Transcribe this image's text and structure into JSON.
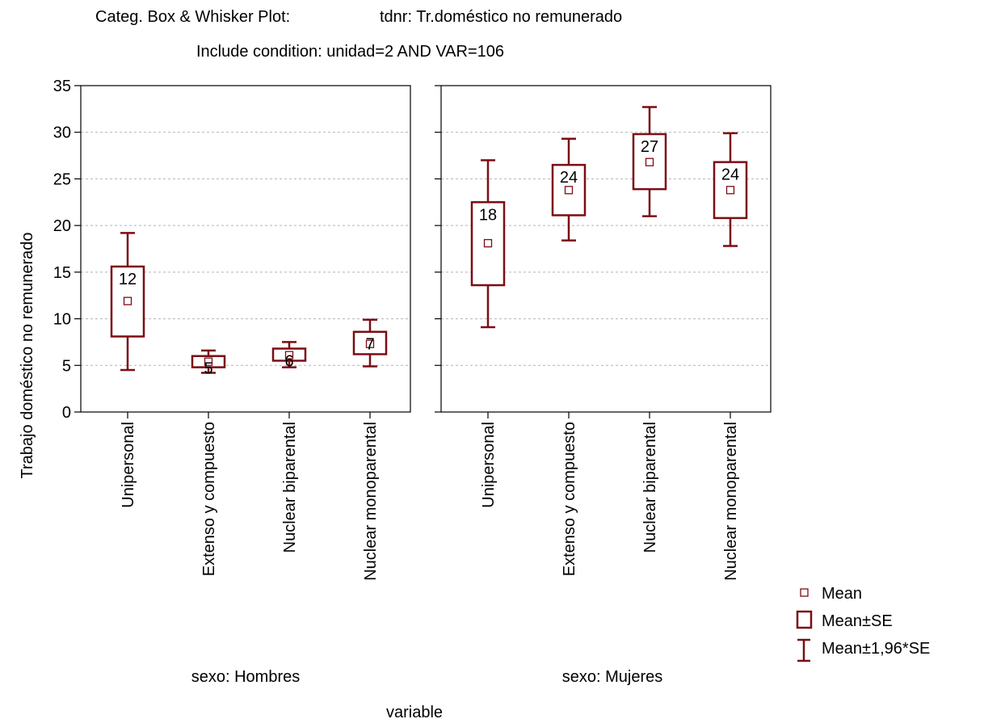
{
  "chart_data": {
    "type": "box",
    "title": "Categ. Box & Whisker Plot:",
    "title_variable": "tdnr: Tr.doméstico no remunerado",
    "subtitle": "Include condition: unidad=2 AND VAR=106",
    "ylabel": "Trabajo doméstico no remunerado",
    "xlabel": "variable",
    "ylim": [
      0,
      35
    ],
    "yticks": [
      0,
      5,
      10,
      15,
      20,
      25,
      30,
      35
    ],
    "grid": true,
    "legend_position": "bottom-right",
    "legend": [
      "Mean",
      "Mean±SE",
      "Mean±1,96*SE"
    ],
    "colors": {
      "box": "#7b0d14",
      "grid": "#b4b4b4",
      "frame": "#000000"
    },
    "panels": [
      {
        "label": "sexo: Hombres",
        "categories": [
          "Unipersonal",
          "Extenso y compuesto",
          "Nuclear biparental",
          "Nuclear monoparental"
        ],
        "mean": [
          11.9,
          5.4,
          6.1,
          7.3
        ],
        "mean_label": [
          "12",
          "5",
          "6",
          "7"
        ],
        "se_low": [
          8.1,
          4.8,
          5.5,
          6.2
        ],
        "se_high": [
          15.6,
          6.0,
          6.8,
          8.6
        ],
        "ci_low": [
          4.5,
          4.2,
          4.8,
          4.9
        ],
        "ci_high": [
          19.2,
          6.6,
          7.5,
          9.9
        ]
      },
      {
        "label": "sexo: Mujeres",
        "categories": [
          "Unipersonal",
          "Extenso y compuesto",
          "Nuclear biparental",
          "Nuclear monoparental"
        ],
        "mean": [
          18.1,
          23.8,
          26.8,
          23.8
        ],
        "mean_label": [
          "18",
          "24",
          "27",
          "24"
        ],
        "se_low": [
          13.6,
          21.1,
          23.9,
          20.8
        ],
        "se_high": [
          22.5,
          26.5,
          29.8,
          26.8
        ],
        "ci_low": [
          9.1,
          18.4,
          21.0,
          17.8
        ],
        "ci_high": [
          27.0,
          29.3,
          32.7,
          29.9
        ]
      }
    ]
  }
}
